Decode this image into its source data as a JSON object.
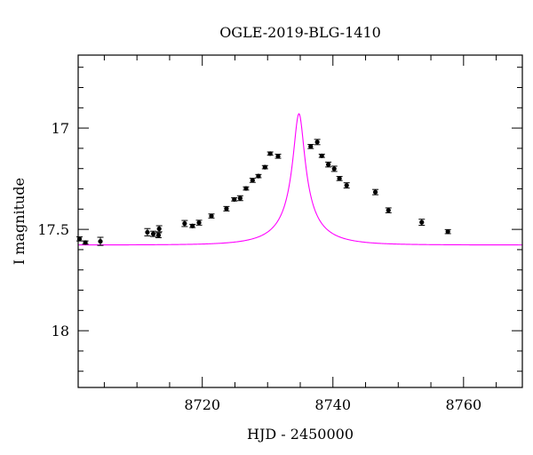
{
  "chart_data": {
    "type": "scatter",
    "title": "OGLE-2019-BLG-1410",
    "xlabel": "HJD - 2450000",
    "ylabel": "I magnitude",
    "xlim": [
      8701,
      8769
    ],
    "ylim": [
      18.28,
      16.64
    ],
    "y_inverted": true,
    "x_ticks": [
      {
        "value": 8720,
        "label": "8720"
      },
      {
        "value": 8740,
        "label": "8740"
      },
      {
        "value": 8760,
        "label": "8760"
      }
    ],
    "y_ticks": [
      {
        "value": 17,
        "label": "17"
      },
      {
        "value": 17.5,
        "label": "17.5"
      },
      {
        "value": 18,
        "label": "18"
      }
    ],
    "x_minor_step": 5,
    "y_minor_step": 0.1,
    "series": [
      {
        "kind": "points",
        "color": "#000000",
        "points": [
          {
            "x": 8701.2,
            "y": 17.547,
            "err": 0.01
          },
          {
            "x": 8702.1,
            "y": 17.565,
            "err": 0.008
          },
          {
            "x": 8704.4,
            "y": 17.559,
            "err": 0.02
          },
          {
            "x": 8711.6,
            "y": 17.514,
            "err": 0.018
          },
          {
            "x": 8712.5,
            "y": 17.522,
            "err": 0.013
          },
          {
            "x": 8713.3,
            "y": 17.529,
            "err": 0.012
          },
          {
            "x": 8713.4,
            "y": 17.497,
            "err": 0.015
          },
          {
            "x": 8717.3,
            "y": 17.471,
            "err": 0.015
          },
          {
            "x": 8718.5,
            "y": 17.483,
            "err": 0.008
          },
          {
            "x": 8719.5,
            "y": 17.467,
            "err": 0.012
          },
          {
            "x": 8721.4,
            "y": 17.434,
            "err": 0.01
          },
          {
            "x": 8723.7,
            "y": 17.398,
            "err": 0.011
          },
          {
            "x": 8724.9,
            "y": 17.352,
            "err": 0.008
          },
          {
            "x": 8725.8,
            "y": 17.346,
            "err": 0.012
          },
          {
            "x": 8726.7,
            "y": 17.298,
            "err": 0.008
          },
          {
            "x": 8727.7,
            "y": 17.258,
            "err": 0.01
          },
          {
            "x": 8728.6,
            "y": 17.237,
            "err": 0.008
          },
          {
            "x": 8729.6,
            "y": 17.193,
            "err": 0.008
          },
          {
            "x": 8730.4,
            "y": 17.126,
            "err": 0.008
          },
          {
            "x": 8731.6,
            "y": 17.139,
            "err": 0.01
          },
          {
            "x": 8736.6,
            "y": 17.091,
            "err": 0.01
          },
          {
            "x": 8737.6,
            "y": 17.069,
            "err": 0.013
          },
          {
            "x": 8738.3,
            "y": 17.137,
            "err": 0.008
          },
          {
            "x": 8739.3,
            "y": 17.18,
            "err": 0.012
          },
          {
            "x": 8740.2,
            "y": 17.201,
            "err": 0.013
          },
          {
            "x": 8741.0,
            "y": 17.249,
            "err": 0.01
          },
          {
            "x": 8742.1,
            "y": 17.283,
            "err": 0.013
          },
          {
            "x": 8746.5,
            "y": 17.316,
            "err": 0.013
          },
          {
            "x": 8748.5,
            "y": 17.406,
            "err": 0.012
          },
          {
            "x": 8753.6,
            "y": 17.465,
            "err": 0.015
          },
          {
            "x": 8757.6,
            "y": 17.511,
            "err": 0.01
          }
        ]
      },
      {
        "kind": "model",
        "color": "#ff00ff",
        "curve": {
          "baseline": 17.577,
          "amplitude": 0.648,
          "t0": 8734.8,
          "tE": 6.9
        }
      }
    ]
  }
}
